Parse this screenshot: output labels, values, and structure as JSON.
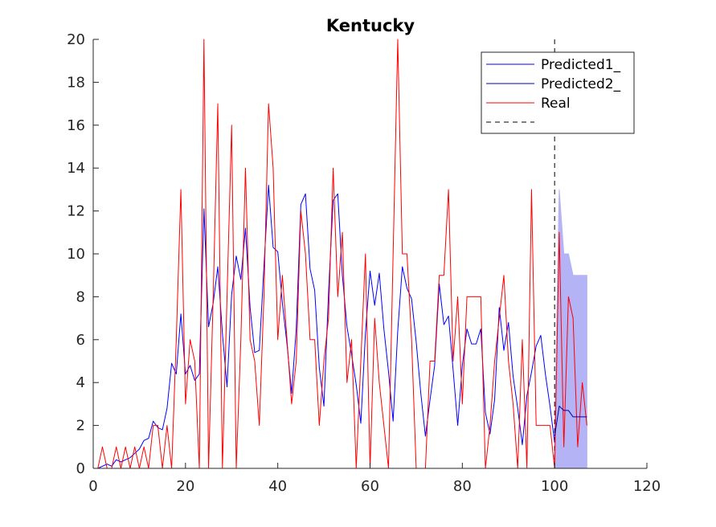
{
  "chart_data": {
    "type": "line",
    "title": "Kentucky",
    "xlabel": "",
    "ylabel": "",
    "xlim": [
      0,
      120
    ],
    "ylim": [
      0,
      20
    ],
    "x_ticks": [
      "0",
      "20",
      "40",
      "60",
      "80",
      "100",
      "120"
    ],
    "y_ticks": [
      "0",
      "2",
      "4",
      "6",
      "8",
      "10",
      "12",
      "14",
      "16",
      "18",
      "20"
    ],
    "grid": false,
    "legend_position": "top-right",
    "vertical_line": {
      "x": 100,
      "style": "dashed",
      "color": "#000000"
    },
    "series": [
      {
        "name": "Predicted1_",
        "color": "#0000ff",
        "x": [
          1,
          2,
          3,
          4,
          5,
          6,
          7,
          8,
          9,
          10,
          11,
          12,
          13,
          14,
          15,
          16,
          17,
          18,
          19,
          20,
          21,
          22,
          23,
          24,
          25,
          26,
          27,
          28,
          29,
          30,
          31,
          32,
          33,
          34,
          35,
          36,
          37,
          38,
          39,
          40,
          41,
          42,
          43,
          44,
          45,
          46,
          47,
          48,
          49,
          50,
          51,
          52,
          53,
          54,
          55,
          56,
          57,
          58,
          59,
          60,
          61,
          62,
          63,
          64,
          65,
          66,
          67,
          68,
          69,
          70,
          71,
          72,
          73,
          74,
          75,
          76,
          77,
          78,
          79,
          80,
          81,
          82,
          83,
          84,
          85,
          86,
          87,
          88,
          89,
          90,
          91,
          92,
          93,
          94,
          95,
          96,
          97,
          98,
          99,
          100
        ],
        "y": [
          0,
          0.1,
          0.2,
          0.1,
          0.4,
          0.3,
          0.4,
          0.5,
          0.7,
          0.9,
          1.3,
          1.4,
          2.2,
          1.9,
          1.8,
          2.8,
          4.9,
          4.4,
          7.2,
          4.4,
          4.8,
          4.1,
          4.4,
          12.1,
          6.6,
          7.7,
          9.4,
          6.3,
          3.8,
          8.1,
          9.9,
          8.8,
          11.2,
          7.5,
          5.4,
          5.5,
          9.4,
          13.2,
          10.3,
          10.1,
          7.7,
          5.8,
          3.5,
          6.5,
          12.3,
          12.8,
          9.3,
          8.3,
          4.7,
          2.9,
          8.2,
          12.5,
          12.8,
          9.0,
          6.6,
          5.3,
          3.9,
          2.1,
          6.3,
          9.2,
          7.6,
          9.1,
          6.5,
          4.5,
          2.2,
          6.4,
          9.4,
          8.4,
          7.9,
          5.9,
          3.5,
          1.5,
          3.2,
          4.8,
          8.6,
          6.7,
          7.1,
          4.6,
          2.0,
          4.8,
          6.5,
          5.8,
          5.8,
          6.5,
          2.6,
          1.6,
          3.2,
          7.5,
          5.5,
          6.8,
          4.3,
          2.8,
          1.1,
          3.4,
          4.5,
          5.7,
          6.2,
          4.4,
          2.9,
          1.2
        ]
      },
      {
        "name": "Predicted2_",
        "color": "#0000ad",
        "x": [
          100,
          101,
          102,
          103,
          104,
          105,
          106,
          107
        ],
        "y": [
          1.5,
          2.9,
          2.7,
          2.7,
          2.4,
          2.4,
          2.4,
          2.4
        ]
      },
      {
        "name": "Real",
        "color": "#ff0000",
        "x": [
          1,
          2,
          3,
          4,
          5,
          6,
          7,
          8,
          9,
          10,
          11,
          12,
          13,
          14,
          15,
          16,
          17,
          18,
          19,
          20,
          21,
          22,
          23,
          24,
          25,
          26,
          27,
          28,
          29,
          30,
          31,
          32,
          33,
          34,
          35,
          36,
          37,
          38,
          39,
          40,
          41,
          42,
          43,
          44,
          45,
          46,
          47,
          48,
          49,
          50,
          51,
          52,
          53,
          54,
          55,
          56,
          57,
          58,
          59,
          60,
          61,
          62,
          63,
          64,
          65,
          66,
          67,
          68,
          69,
          70,
          71,
          72,
          73,
          74,
          75,
          76,
          77,
          78,
          79,
          80,
          81,
          82,
          83,
          84,
          85,
          86,
          87,
          88,
          89,
          90,
          91,
          92,
          93,
          94,
          95,
          96,
          97,
          98,
          99,
          100,
          101,
          102,
          103,
          104,
          105,
          106,
          107
        ],
        "y": [
          0,
          1,
          0,
          0,
          1,
          0,
          1,
          0,
          1,
          0,
          1,
          0,
          2,
          2,
          0,
          2,
          0,
          6,
          13,
          3,
          6,
          5,
          0,
          20,
          0,
          8,
          17,
          0,
          8,
          16,
          0,
          6,
          14,
          6,
          5,
          2,
          8,
          17,
          14,
          6,
          9,
          6,
          3,
          5,
          12,
          10,
          6,
          6,
          2,
          5,
          7,
          14,
          8,
          11,
          4,
          6,
          0,
          5,
          10,
          0,
          7,
          4,
          2,
          0,
          10,
          20,
          10,
          10,
          6,
          0,
          0,
          0,
          5,
          5,
          9,
          9,
          13,
          5,
          8,
          3,
          8,
          8,
          8,
          8,
          0,
          2,
          5,
          7,
          9,
          5,
          3,
          0,
          6,
          0,
          13,
          2,
          2,
          2,
          2,
          0,
          11,
          1,
          8,
          7,
          1,
          4,
          2
        ]
      },
      {
        "name": "",
        "color": "#000000",
        "style": "dashed",
        "legend_only": true
      }
    ],
    "confidence_band": {
      "color": "#b3b3f5",
      "x": [
        100,
        101,
        102,
        103,
        104,
        105,
        106,
        107
      ],
      "upper": [
        1.5,
        13,
        10,
        10,
        9,
        9,
        9,
        9
      ],
      "lower": [
        0,
        0,
        0,
        0,
        0,
        0,
        0,
        0
      ]
    }
  }
}
